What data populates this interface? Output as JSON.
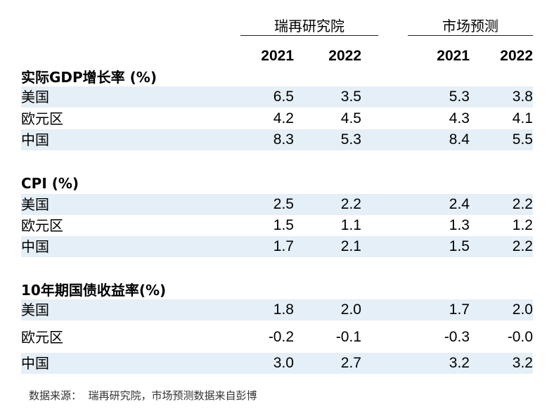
{
  "headers": {
    "group_ubs": "瑞再研究院",
    "group_market": "市场预测",
    "years": [
      "2021",
      "2022",
      "2021",
      "2022"
    ]
  },
  "sections": [
    {
      "title": "实际GDP增长率 (%)",
      "rows": [
        {
          "label": "美国",
          "values": [
            "6.5",
            "3.5",
            "5.3",
            "3.8"
          ]
        },
        {
          "label": "欧元区",
          "values": [
            "4.2",
            "4.5",
            "4.3",
            "4.1"
          ]
        },
        {
          "label": "中国",
          "values": [
            "8.3",
            "5.3",
            "8.4",
            "5.5"
          ]
        }
      ]
    },
    {
      "title": "CPI (%)",
      "rows": [
        {
          "label": "美国",
          "values": [
            "2.5",
            "2.2",
            "2.4",
            "2.2"
          ]
        },
        {
          "label": "欧元区",
          "values": [
            "1.5",
            "1.1",
            "1.3",
            "1.2"
          ]
        },
        {
          "label": "中国",
          "values": [
            "1.7",
            "2.1",
            "1.5",
            "2.2"
          ]
        }
      ]
    },
    {
      "title": "10年期国债收益率(%)",
      "rows": [
        {
          "label": "美国",
          "values": [
            "1.8",
            "2.0",
            "1.7",
            "2.0"
          ]
        },
        {
          "label": "欧元区",
          "values": [
            "-0.2",
            "-0.1",
            "-0.3",
            "-0.0"
          ]
        },
        {
          "label": "中国",
          "values": [
            "3.0",
            "2.7",
            "3.2",
            "3.2"
          ]
        }
      ]
    }
  ],
  "source": "数据来源：  瑞再研究院，市场预测数据来自彭博",
  "colors": {
    "row_shade": "#e5eff7",
    "rule": "#222222"
  }
}
